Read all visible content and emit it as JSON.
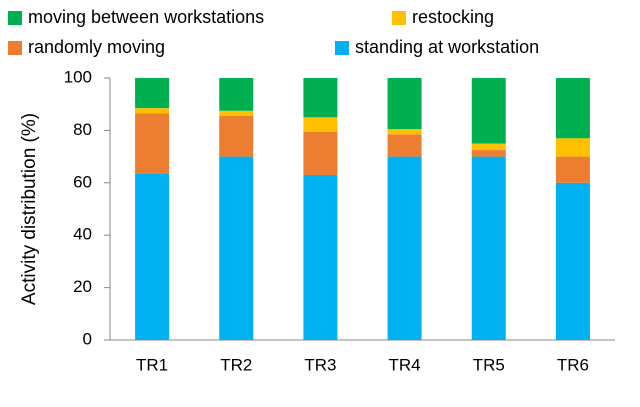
{
  "chart_data": {
    "type": "stacked_bar",
    "categories": [
      "TR1",
      "TR2",
      "TR3",
      "TR4",
      "TR5",
      "TR6"
    ],
    "series": [
      {
        "name": "standing at workstation",
        "color": "#00b0f0",
        "values": [
          63.5,
          70,
          63,
          70,
          70,
          60
        ]
      },
      {
        "name": "randomly moving",
        "color": "#ed7d31",
        "values": [
          23,
          15.5,
          16.5,
          8.5,
          2.5,
          10
        ]
      },
      {
        "name": "restocking",
        "color": "#ffc000",
        "values": [
          2,
          2,
          5.5,
          2,
          2.5,
          7
        ]
      },
      {
        "name": "moving between workstations",
        "color": "#00b050",
        "values": [
          11.5,
          12.5,
          15,
          19.5,
          25,
          23
        ]
      }
    ],
    "y_label": "Activity distribution (%)",
    "ylim": [
      0,
      100
    ],
    "yticks": [
      0,
      20,
      40,
      60,
      80,
      100
    ]
  }
}
